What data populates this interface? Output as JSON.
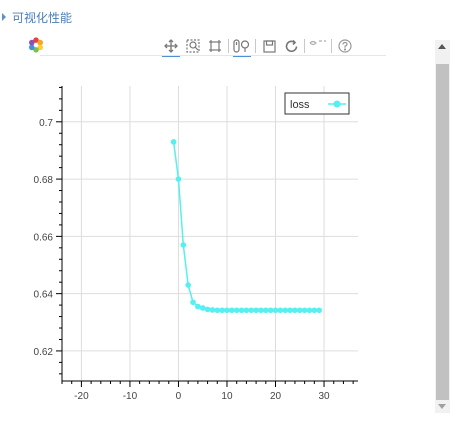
{
  "header": {
    "title": "可视化性能"
  },
  "toolbar": {
    "tools": [
      "pan-icon",
      "box-zoom-icon",
      "reset-view-icon",
      "wheel-zoom-icon",
      "save-icon",
      "refresh-icon",
      "hover-icon",
      "help-icon"
    ],
    "active": [
      "pan-icon",
      "wheel-zoom-icon"
    ]
  },
  "colors": {
    "series": "#55f0f0",
    "accent": "#4f8fd6",
    "title": "#4a7db8"
  },
  "chart_data": {
    "type": "line",
    "title": "",
    "xlabel": "",
    "ylabel": "",
    "xlim": [
      -24,
      37
    ],
    "ylim": [
      0.6095,
      0.7125
    ],
    "x_ticks": [
      "-20",
      "-10",
      "0",
      "10",
      "20",
      "30"
    ],
    "y_ticks": [
      "0.62",
      "0.64",
      "0.66",
      "0.68",
      "0.7"
    ],
    "grid": true,
    "legend": {
      "position": "top-right"
    },
    "series": [
      {
        "name": "loss",
        "marker": "circle",
        "x": [
          -1,
          0,
          1,
          2,
          3,
          4,
          5,
          6,
          7,
          8,
          9,
          10,
          11,
          12,
          13,
          14,
          15,
          16,
          17,
          18,
          19,
          20,
          21,
          22,
          23,
          24,
          25,
          26,
          27,
          28,
          29
        ],
        "values": [
          0.693,
          0.68,
          0.657,
          0.643,
          0.637,
          0.6355,
          0.635,
          0.6345,
          0.6343,
          0.6342,
          0.6342,
          0.6342,
          0.6342,
          0.6342,
          0.6342,
          0.6342,
          0.6342,
          0.6342,
          0.6342,
          0.6342,
          0.6342,
          0.6342,
          0.6342,
          0.6342,
          0.6342,
          0.6342,
          0.6342,
          0.6342,
          0.6342,
          0.6342,
          0.6342
        ]
      }
    ]
  }
}
